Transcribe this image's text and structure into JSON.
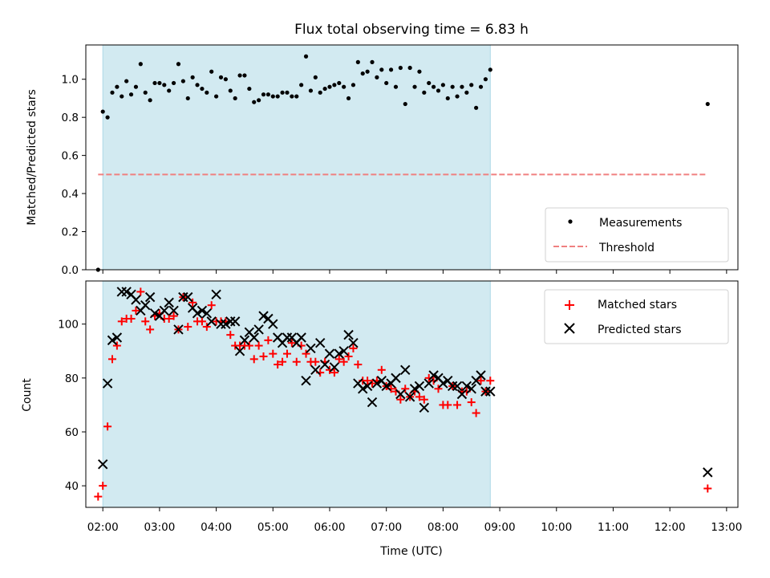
{
  "chart_data": [
    {
      "type": "scatter",
      "title": "Flux total observing time = 6.83 h",
      "xlabel": "",
      "ylabel": "Matched/Predicted stars",
      "xlim": [
        "01:42",
        "13:12"
      ],
      "ylim": [
        0,
        1.18
      ],
      "yticks": [
        0.0,
        0.2,
        0.4,
        0.6,
        0.8,
        1.0
      ],
      "ytick_labels": [
        "0.0",
        "0.2",
        "0.4",
        "0.6",
        "0.8",
        "1.0"
      ],
      "grid": false,
      "legend_position": "lower right",
      "shaded_span": {
        "start": "02:00",
        "end": "08:50",
        "color": "#add8e6"
      },
      "threshold": {
        "name": "Threshold",
        "value": 0.5,
        "x_start": "01:55",
        "x_end": "12:40",
        "color": "#f08080",
        "style": "dashed"
      },
      "series": [
        {
          "name": "Measurements",
          "marker": "dot",
          "color": "#000000",
          "points": [
            [
              "01:55",
              0.0
            ],
            [
              "02:00",
              0.83
            ],
            [
              "02:05",
              0.8
            ],
            [
              "02:10",
              0.93
            ],
            [
              "02:15",
              0.96
            ],
            [
              "02:20",
              0.91
            ],
            [
              "02:25",
              0.99
            ],
            [
              "02:30",
              0.92
            ],
            [
              "02:35",
              0.96
            ],
            [
              "02:40",
              1.08
            ],
            [
              "02:45",
              0.93
            ],
            [
              "02:50",
              0.89
            ],
            [
              "02:55",
              0.98
            ],
            [
              "03:00",
              0.98
            ],
            [
              "03:05",
              0.97
            ],
            [
              "03:10",
              0.94
            ],
            [
              "03:15",
              0.98
            ],
            [
              "03:20",
              1.08
            ],
            [
              "03:25",
              0.99
            ],
            [
              "03:30",
              0.9
            ],
            [
              "03:35",
              1.01
            ],
            [
              "03:40",
              0.97
            ],
            [
              "03:45",
              0.95
            ],
            [
              "03:50",
              0.93
            ],
            [
              "03:55",
              1.04
            ],
            [
              "04:00",
              0.91
            ],
            [
              "04:05",
              1.01
            ],
            [
              "04:10",
              1.0
            ],
            [
              "04:15",
              0.94
            ],
            [
              "04:20",
              0.9
            ],
            [
              "04:25",
              1.02
            ],
            [
              "04:30",
              1.02
            ],
            [
              "04:35",
              0.95
            ],
            [
              "04:40",
              0.88
            ],
            [
              "04:45",
              0.89
            ],
            [
              "04:50",
              0.92
            ],
            [
              "04:55",
              0.92
            ],
            [
              "05:00",
              0.91
            ],
            [
              "05:05",
              0.91
            ],
            [
              "05:10",
              0.93
            ],
            [
              "05:15",
              0.93
            ],
            [
              "05:20",
              0.91
            ],
            [
              "05:25",
              0.91
            ],
            [
              "05:30",
              0.97
            ],
            [
              "05:35",
              1.12
            ],
            [
              "05:40",
              0.94
            ],
            [
              "05:45",
              1.01
            ],
            [
              "05:50",
              0.93
            ],
            [
              "05:55",
              0.95
            ],
            [
              "06:00",
              0.96
            ],
            [
              "06:05",
              0.97
            ],
            [
              "06:10",
              0.98
            ],
            [
              "06:15",
              0.96
            ],
            [
              "06:20",
              0.9
            ],
            [
              "06:25",
              0.97
            ],
            [
              "06:30",
              1.09
            ],
            [
              "06:35",
              1.03
            ],
            [
              "06:40",
              1.04
            ],
            [
              "06:45",
              1.09
            ],
            [
              "06:50",
              1.01
            ],
            [
              "06:55",
              1.05
            ],
            [
              "07:00",
              0.98
            ],
            [
              "07:05",
              1.05
            ],
            [
              "07:10",
              0.96
            ],
            [
              "07:15",
              1.06
            ],
            [
              "07:20",
              0.87
            ],
            [
              "07:25",
              1.06
            ],
            [
              "07:30",
              0.96
            ],
            [
              "07:35",
              1.04
            ],
            [
              "07:40",
              0.93
            ],
            [
              "07:45",
              0.98
            ],
            [
              "07:50",
              0.96
            ],
            [
              "07:55",
              0.94
            ],
            [
              "08:00",
              0.97
            ],
            [
              "08:05",
              0.9
            ],
            [
              "08:10",
              0.96
            ],
            [
              "08:15",
              0.91
            ],
            [
              "08:20",
              0.96
            ],
            [
              "08:25",
              0.93
            ],
            [
              "08:30",
              0.97
            ],
            [
              "08:35",
              0.85
            ],
            [
              "08:40",
              0.96
            ],
            [
              "08:45",
              1.0
            ],
            [
              "08:50",
              1.05
            ],
            [
              "12:40",
              0.87
            ]
          ]
        }
      ]
    },
    {
      "type": "scatter",
      "title": "",
      "xlabel": "Time (UTC)",
      "ylabel": "Count",
      "xlim": [
        "01:42",
        "13:12"
      ],
      "ylim": [
        32,
        116
      ],
      "xticks": [
        "02:00",
        "03:00",
        "04:00",
        "05:00",
        "06:00",
        "07:00",
        "08:00",
        "09:00",
        "10:00",
        "11:00",
        "12:00",
        "13:00"
      ],
      "yticks": [
        40,
        60,
        80,
        100
      ],
      "ytick_labels": [
        "40",
        "60",
        "80",
        "100"
      ],
      "grid": false,
      "legend_position": "upper right",
      "shaded_span": {
        "start": "02:00",
        "end": "08:50",
        "color": "#add8e6"
      },
      "series": [
        {
          "name": "Matched stars",
          "marker": "plus",
          "color": "#ff0000",
          "points": [
            [
              "01:55",
              36
            ],
            [
              "02:00",
              40
            ],
            [
              "02:05",
              62
            ],
            [
              "02:10",
              87
            ],
            [
              "02:15",
              92
            ],
            [
              "02:20",
              101
            ],
            [
              "02:25",
              102
            ],
            [
              "02:30",
              102
            ],
            [
              "02:35",
              105
            ],
            [
              "02:40",
              112
            ],
            [
              "02:45",
              101
            ],
            [
              "02:50",
              98
            ],
            [
              "02:55",
              103
            ],
            [
              "03:00",
              104
            ],
            [
              "03:05",
              102
            ],
            [
              "03:10",
              102
            ],
            [
              "03:15",
              103
            ],
            [
              "03:20",
              98
            ],
            [
              "03:25",
              110
            ],
            [
              "03:30",
              99
            ],
            [
              "03:35",
              108
            ],
            [
              "03:40",
              101
            ],
            [
              "03:45",
              101
            ],
            [
              "03:50",
              99
            ],
            [
              "03:55",
              107
            ],
            [
              "04:00",
              101
            ],
            [
              "04:05",
              101
            ],
            [
              "04:10",
              101
            ],
            [
              "04:15",
              96
            ],
            [
              "04:20",
              92
            ],
            [
              "04:25",
              92
            ],
            [
              "04:30",
              92
            ],
            [
              "04:35",
              92
            ],
            [
              "04:40",
              87
            ],
            [
              "04:45",
              92
            ],
            [
              "04:50",
              88
            ],
            [
              "04:55",
              94
            ],
            [
              "05:00",
              89
            ],
            [
              "05:05",
              85
            ],
            [
              "05:10",
              86
            ],
            [
              "05:15",
              89
            ],
            [
              "05:20",
              93
            ],
            [
              "05:25",
              86
            ],
            [
              "05:30",
              92
            ],
            [
              "05:35",
              89
            ],
            [
              "05:40",
              86
            ],
            [
              "05:45",
              86
            ],
            [
              "05:50",
              82
            ],
            [
              "05:55",
              86
            ],
            [
              "06:00",
              83
            ],
            [
              "06:05",
              82
            ],
            [
              "06:10",
              87
            ],
            [
              "06:15",
              86
            ],
            [
              "06:20",
              88
            ],
            [
              "06:25",
              91
            ],
            [
              "06:30",
              85
            ],
            [
              "06:35",
              79
            ],
            [
              "06:40",
              79
            ],
            [
              "06:45",
              78
            ],
            [
              "06:50",
              79
            ],
            [
              "06:55",
              83
            ],
            [
              "07:00",
              77
            ],
            [
              "07:05",
              76
            ],
            [
              "07:10",
              75
            ],
            [
              "07:15",
              72
            ],
            [
              "07:20",
              76
            ],
            [
              "07:25",
              73
            ],
            [
              "07:30",
              75
            ],
            [
              "07:35",
              73
            ],
            [
              "07:40",
              72
            ],
            [
              "07:45",
              80
            ],
            [
              "07:50",
              79
            ],
            [
              "07:55",
              76
            ],
            [
              "08:00",
              70
            ],
            [
              "08:05",
              70
            ],
            [
              "08:10",
              77
            ],
            [
              "08:15",
              70
            ],
            [
              "08:20",
              75
            ],
            [
              "08:25",
              75
            ],
            [
              "08:30",
              71
            ],
            [
              "08:35",
              67
            ],
            [
              "08:40",
              79
            ],
            [
              "08:45",
              75
            ],
            [
              "08:50",
              79
            ],
            [
              "12:40",
              39
            ]
          ]
        },
        {
          "name": "Predicted stars",
          "marker": "x",
          "color": "#000000",
          "points": [
            [
              "02:00",
              48
            ],
            [
              "02:05",
              78
            ],
            [
              "02:10",
              94
            ],
            [
              "02:15",
              95
            ],
            [
              "02:20",
              112
            ],
            [
              "02:25",
              112
            ],
            [
              "02:30",
              111
            ],
            [
              "02:35",
              109
            ],
            [
              "02:40",
              105
            ],
            [
              "02:45",
              107
            ],
            [
              "02:50",
              110
            ],
            [
              "02:55",
              104
            ],
            [
              "03:00",
              103
            ],
            [
              "03:05",
              105
            ],
            [
              "03:10",
              108
            ],
            [
              "03:15",
              105
            ],
            [
              "03:20",
              98
            ],
            [
              "03:25",
              110
            ],
            [
              "03:30",
              110
            ],
            [
              "03:35",
              106
            ],
            [
              "03:40",
              104
            ],
            [
              "03:45",
              105
            ],
            [
              "03:50",
              104
            ],
            [
              "03:55",
              101
            ],
            [
              "04:00",
              111
            ],
            [
              "04:05",
              100
            ],
            [
              "04:10",
              100
            ],
            [
              "04:15",
              101
            ],
            [
              "04:20",
              101
            ],
            [
              "04:25",
              90
            ],
            [
              "04:30",
              94
            ],
            [
              "04:35",
              97
            ],
            [
              "04:40",
              95
            ],
            [
              "04:45",
              98
            ],
            [
              "04:50",
              103
            ],
            [
              "04:55",
              102
            ],
            [
              "05:00",
              100
            ],
            [
              "05:05",
              95
            ],
            [
              "05:10",
              93
            ],
            [
              "05:15",
              95
            ],
            [
              "05:20",
              95
            ],
            [
              "05:25",
              93
            ],
            [
              "05:30",
              95
            ],
            [
              "05:35",
              79
            ],
            [
              "05:40",
              91
            ],
            [
              "05:45",
              83
            ],
            [
              "05:50",
              93
            ],
            [
              "05:55",
              85
            ],
            [
              "06:00",
              89
            ],
            [
              "06:05",
              84
            ],
            [
              "06:10",
              89
            ],
            [
              "06:15",
              90
            ],
            [
              "06:20",
              96
            ],
            [
              "06:25",
              93
            ],
            [
              "06:30",
              78
            ],
            [
              "06:35",
              76
            ],
            [
              "06:40",
              77
            ],
            [
              "06:45",
              71
            ],
            [
              "06:50",
              78
            ],
            [
              "06:55",
              79
            ],
            [
              "07:00",
              77
            ],
            [
              "07:05",
              78
            ],
            [
              "07:10",
              80
            ],
            [
              "07:15",
              74
            ],
            [
              "07:20",
              83
            ],
            [
              "07:25",
              73
            ],
            [
              "07:30",
              76
            ],
            [
              "07:35",
              77
            ],
            [
              "07:40",
              69
            ],
            [
              "07:45",
              78
            ],
            [
              "07:50",
              81
            ],
            [
              "07:55",
              80
            ],
            [
              "08:00",
              78
            ],
            [
              "08:05",
              79
            ],
            [
              "08:10",
              77
            ],
            [
              "08:15",
              77
            ],
            [
              "08:20",
              74
            ],
            [
              "08:25",
              77
            ],
            [
              "08:30",
              76
            ],
            [
              "08:35",
              79
            ],
            [
              "08:40",
              81
            ],
            [
              "08:45",
              75
            ],
            [
              "08:50",
              75
            ],
            [
              "12:40",
              45
            ]
          ]
        }
      ]
    }
  ]
}
